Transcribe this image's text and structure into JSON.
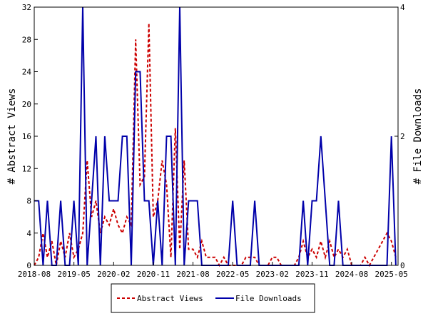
{
  "chart_data": {
    "type": "line",
    "x_ticks": [
      "2018-08",
      "2019-05",
      "2020-02",
      "2020-11",
      "2021-08",
      "2022-05",
      "2023-02",
      "2023-11",
      "2024-08",
      "2025-05"
    ],
    "y_left": {
      "label": "# Abstract Views",
      "ticks": [
        "0",
        "4",
        "8",
        "12",
        "16",
        "20",
        "24",
        "28",
        "32"
      ],
      "range": [
        0,
        32
      ]
    },
    "y_right": {
      "label": "# File Downloads",
      "ticks": [
        "0",
        "2",
        "4"
      ],
      "range": [
        0,
        4
      ]
    },
    "grid": false,
    "legend_position": "bottom-center",
    "series": [
      {
        "name": "Abstract Views",
        "axis": "left",
        "style": "dashed",
        "color": "#cc0000",
        "x": [
          "2018-08",
          "2018-09",
          "2018-10",
          "2018-11",
          "2018-12",
          "2019-01",
          "2019-02",
          "2019-03",
          "2019-04",
          "2019-05",
          "2019-06",
          "2019-07",
          "2019-08",
          "2019-09",
          "2019-10",
          "2019-11",
          "2019-12",
          "2020-01",
          "2020-02",
          "2020-03",
          "2020-04",
          "2020-05",
          "2020-06",
          "2020-07",
          "2020-08",
          "2020-09",
          "2020-10",
          "2020-11",
          "2020-12",
          "2021-01",
          "2021-02",
          "2021-03",
          "2021-04",
          "2021-05",
          "2021-06",
          "2021-07",
          "2021-08",
          "2021-09",
          "2021-10",
          "2021-11",
          "2021-12",
          "2022-01",
          "2022-02",
          "2022-03",
          "2022-04",
          "2022-05",
          "2022-06",
          "2022-07",
          "2022-08",
          "2022-09",
          "2022-10",
          "2022-11",
          "2022-12",
          "2023-01",
          "2023-02",
          "2023-03",
          "2023-04",
          "2023-05",
          "2023-06",
          "2023-07",
          "2023-08",
          "2023-09",
          "2023-10",
          "2023-11",
          "2023-12",
          "2024-01",
          "2024-02",
          "2024-03",
          "2024-04",
          "2024-05",
          "2024-06",
          "2024-07",
          "2024-08",
          "2024-09",
          "2024-10",
          "2024-11",
          "2024-12",
          "2025-01",
          "2025-02",
          "2025-03",
          "2025-04",
          "2025-05",
          "2025-06"
        ],
        "values": [
          0,
          1,
          4,
          1,
          3,
          0,
          3,
          1,
          4,
          1,
          2,
          4,
          13,
          6,
          8,
          4,
          6,
          5,
          7,
          5,
          4,
          6,
          5,
          28,
          10,
          11,
          30,
          6,
          8,
          13,
          10,
          1,
          17,
          2,
          13,
          2,
          2,
          1,
          3,
          1,
          1,
          1,
          0,
          1,
          0,
          0,
          0,
          0,
          1,
          1,
          1,
          0,
          0,
          0,
          1,
          1,
          0,
          0,
          0,
          0,
          1,
          3,
          1,
          2,
          1,
          3,
          1,
          3,
          1,
          2,
          1,
          2,
          0,
          0,
          0,
          1,
          0,
          1,
          2,
          3,
          4,
          3,
          1
        ]
      },
      {
        "name": "File Downloads",
        "axis": "right",
        "style": "solid",
        "color": "#0000aa",
        "x": [
          "2018-08",
          "2018-09",
          "2018-10",
          "2018-11",
          "2018-12",
          "2019-01",
          "2019-02",
          "2019-03",
          "2019-04",
          "2019-05",
          "2019-06",
          "2019-07",
          "2019-08",
          "2019-09",
          "2019-10",
          "2019-11",
          "2019-12",
          "2020-01",
          "2020-02",
          "2020-03",
          "2020-04",
          "2020-05",
          "2020-06",
          "2020-07",
          "2020-08",
          "2020-09",
          "2020-10",
          "2020-11",
          "2020-12",
          "2021-01",
          "2021-02",
          "2021-03",
          "2021-04",
          "2021-05",
          "2021-06",
          "2021-07",
          "2021-08",
          "2021-09",
          "2021-10",
          "2021-11",
          "2021-12",
          "2022-01",
          "2022-02",
          "2022-03",
          "2022-04",
          "2022-05",
          "2022-06",
          "2022-07",
          "2022-08",
          "2022-09",
          "2022-10",
          "2022-11",
          "2022-12",
          "2023-01",
          "2023-02",
          "2023-03",
          "2023-04",
          "2023-05",
          "2023-06",
          "2023-07",
          "2023-08",
          "2023-09",
          "2023-10",
          "2023-11",
          "2023-12",
          "2024-01",
          "2024-02",
          "2024-03",
          "2024-04",
          "2024-05",
          "2024-06",
          "2024-07",
          "2024-08",
          "2024-09",
          "2024-10",
          "2024-11",
          "2024-12",
          "2025-01",
          "2025-02",
          "2025-03",
          "2025-04",
          "2025-05",
          "2025-06"
        ],
        "values": [
          1,
          1,
          0,
          1,
          0,
          0,
          1,
          0,
          0,
          1,
          0,
          4,
          0,
          1,
          2,
          0,
          2,
          1,
          1,
          1,
          2,
          2,
          0,
          3,
          3,
          1,
          1,
          0,
          1,
          0,
          2,
          2,
          0,
          4,
          0,
          1,
          1,
          1,
          0,
          0,
          0,
          0,
          0,
          0,
          0,
          1,
          0,
          0,
          0,
          0,
          1,
          0,
          0,
          0,
          0,
          0,
          0,
          0,
          0,
          0,
          0,
          1,
          0,
          1,
          1,
          2,
          1,
          0,
          0,
          1,
          0,
          0,
          0,
          0,
          0,
          0,
          0,
          0,
          0,
          0,
          0,
          2,
          0
        ]
      }
    ]
  }
}
